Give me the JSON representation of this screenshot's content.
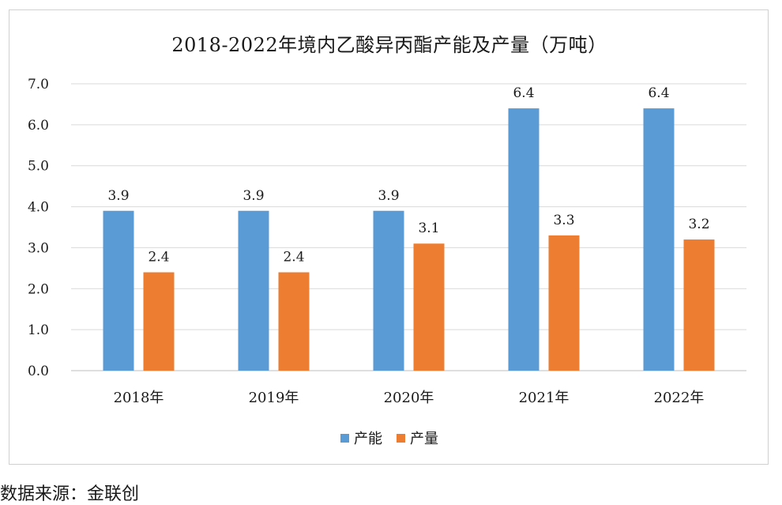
{
  "chart_data": {
    "type": "bar",
    "title": "2018-2022年境内乙酸异丙酯产能及产量（万吨）",
    "categories": [
      "2018年",
      "2019年",
      "2020年",
      "2021年",
      "2022年"
    ],
    "series": [
      {
        "name": "产能",
        "values": [
          3.9,
          3.9,
          3.9,
          6.4,
          6.4
        ],
        "color": "#5b9bd5"
      },
      {
        "name": "产量",
        "values": [
          2.4,
          2.4,
          3.1,
          3.3,
          3.2
        ],
        "color": "#ed7d31"
      }
    ],
    "yticks": [
      "0.0",
      "1.0",
      "2.0",
      "3.0",
      "4.0",
      "5.0",
      "6.0",
      "7.0"
    ],
    "ylim": [
      0,
      7
    ],
    "grid": true,
    "legend_position": "bottom"
  },
  "source": "数据来源：金联创"
}
